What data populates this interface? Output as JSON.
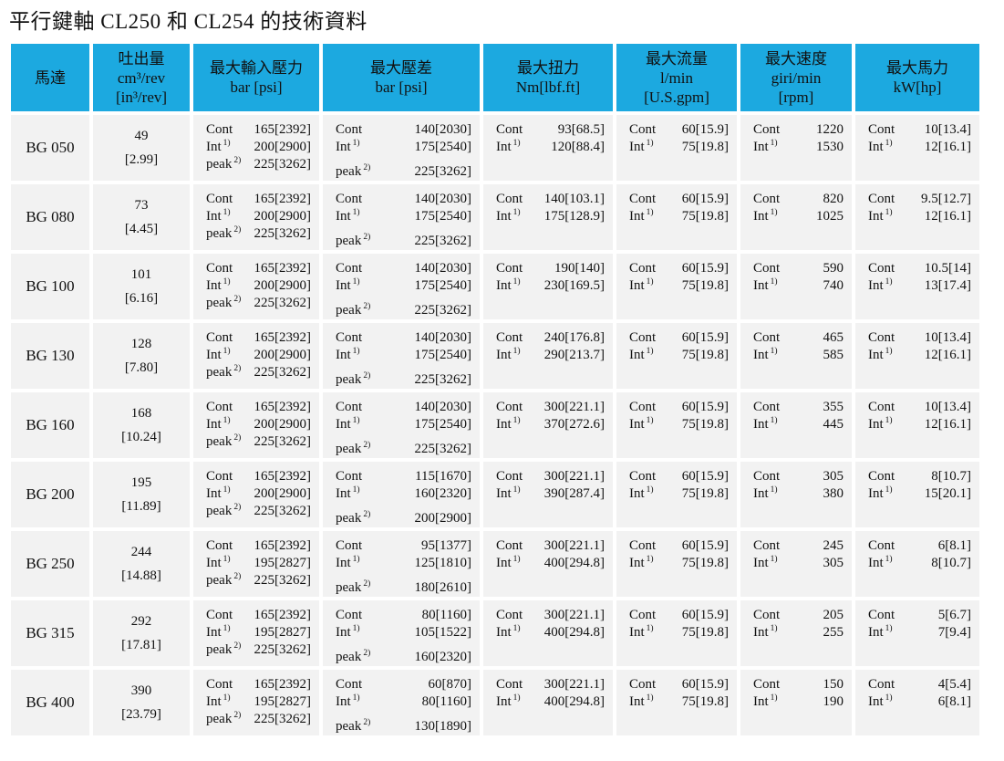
{
  "title": "平行鍵軸 CL250 和 CL254 的技術資料",
  "colors": {
    "header_bg": "#1CA9E0",
    "cell_bg": "#F2F2F2"
  },
  "table": {
    "columns": [
      {
        "key": "motor",
        "lines": [
          "馬達"
        ]
      },
      {
        "key": "displacement",
        "lines": [
          "吐出量",
          "cm³/rev",
          "[in³/rev]"
        ]
      },
      {
        "key": "input-pressure",
        "lines": [
          "最大輸入壓力",
          "bar [psi]"
        ]
      },
      {
        "key": "pressure-diff",
        "lines": [
          "最大壓差",
          "bar [psi]"
        ]
      },
      {
        "key": "torque",
        "lines": [
          "最大扭力",
          "Nm[lbf.ft]"
        ]
      },
      {
        "key": "flow",
        "lines": [
          "最大流量",
          "l/min",
          "[U.S.gpm]"
        ]
      },
      {
        "key": "speed",
        "lines": [
          "最大速度",
          "giri/min",
          "[rpm]"
        ]
      },
      {
        "key": "power",
        "lines": [
          "最大馬力",
          "kW[hp]"
        ]
      }
    ],
    "labels": {
      "cont": "Cont",
      "int": "Int",
      "int_sup": "1)",
      "peak": "peak",
      "peak_sup": "2)"
    },
    "rows": [
      {
        "motor": "BG 050",
        "displacement": [
          "49",
          "[2.99]"
        ],
        "input_pressure": {
          "cont": "165[2392]",
          "int": "200[2900]",
          "peak": "225[3262]"
        },
        "pressure_diff": {
          "cont": "140[2030]",
          "int": "175[2540]",
          "peak": "225[3262]"
        },
        "torque": {
          "cont": "93[68.5]",
          "int": "120[88.4]"
        },
        "flow": {
          "cont": "60[15.9]",
          "int": "75[19.8]"
        },
        "speed": {
          "cont": "1220",
          "int": "1530"
        },
        "power": {
          "cont": "10[13.4]",
          "int": "12[16.1]"
        }
      },
      {
        "motor": "BG 080",
        "displacement": [
          "73",
          "[4.45]"
        ],
        "input_pressure": {
          "cont": "165[2392]",
          "int": "200[2900]",
          "peak": "225[3262]"
        },
        "pressure_diff": {
          "cont": "140[2030]",
          "int": "175[2540]",
          "peak": "225[3262]"
        },
        "torque": {
          "cont": "140[103.1]",
          "int": "175[128.9]"
        },
        "flow": {
          "cont": "60[15.9]",
          "int": "75[19.8]"
        },
        "speed": {
          "cont": "820",
          "int": "1025"
        },
        "power": {
          "cont": "9.5[12.7]",
          "int": "12[16.1]"
        }
      },
      {
        "motor": "BG 100",
        "displacement": [
          "101",
          "[6.16]"
        ],
        "input_pressure": {
          "cont": "165[2392]",
          "int": "200[2900]",
          "peak": "225[3262]"
        },
        "pressure_diff": {
          "cont": "140[2030]",
          "int": "175[2540]",
          "peak": "225[3262]"
        },
        "torque": {
          "cont": "190[140]",
          "int": "230[169.5]"
        },
        "flow": {
          "cont": "60[15.9]",
          "int": "75[19.8]"
        },
        "speed": {
          "cont": "590",
          "int": "740"
        },
        "power": {
          "cont": "10.5[14]",
          "int": "13[17.4]"
        }
      },
      {
        "motor": "BG 130",
        "displacement": [
          "128",
          "[7.80]"
        ],
        "input_pressure": {
          "cont": "165[2392]",
          "int": "200[2900]",
          "peak": "225[3262]"
        },
        "pressure_diff": {
          "cont": "140[2030]",
          "int": "175[2540]",
          "peak": "225[3262]"
        },
        "torque": {
          "cont": "240[176.8]",
          "int": "290[213.7]"
        },
        "flow": {
          "cont": "60[15.9]",
          "int": "75[19.8]"
        },
        "speed": {
          "cont": "465",
          "int": "585"
        },
        "power": {
          "cont": "10[13.4]",
          "int": "12[16.1]"
        }
      },
      {
        "motor": "BG 160",
        "displacement": [
          "168",
          "[10.24]"
        ],
        "input_pressure": {
          "cont": "165[2392]",
          "int": "200[2900]",
          "peak": "225[3262]"
        },
        "pressure_diff": {
          "cont": "140[2030]",
          "int": "175[2540]",
          "peak": "225[3262]"
        },
        "torque": {
          "cont": "300[221.1]",
          "int": "370[272.6]"
        },
        "flow": {
          "cont": "60[15.9]",
          "int": "75[19.8]"
        },
        "speed": {
          "cont": "355",
          "int": "445"
        },
        "power": {
          "cont": "10[13.4]",
          "int": "12[16.1]"
        }
      },
      {
        "motor": "BG 200",
        "displacement": [
          "195",
          "[11.89]"
        ],
        "input_pressure": {
          "cont": "165[2392]",
          "int": "200[2900]",
          "peak": "225[3262]"
        },
        "pressure_diff": {
          "cont": "115[1670]",
          "int": "160[2320]",
          "peak": "200[2900]"
        },
        "torque": {
          "cont": "300[221.1]",
          "int": "390[287.4]"
        },
        "flow": {
          "cont": "60[15.9]",
          "int": "75[19.8]"
        },
        "speed": {
          "cont": "305",
          "int": "380"
        },
        "power": {
          "cont": "8[10.7]",
          "int": "15[20.1]"
        }
      },
      {
        "motor": "BG 250",
        "displacement": [
          "244",
          "[14.88]"
        ],
        "input_pressure": {
          "cont": "165[2392]",
          "int": "195[2827]",
          "peak": "225[3262]"
        },
        "pressure_diff": {
          "cont": "95[1377]",
          "int": "125[1810]",
          "peak": "180[2610]"
        },
        "torque": {
          "cont": "300[221.1]",
          "int": "400[294.8]"
        },
        "flow": {
          "cont": "60[15.9]",
          "int": "75[19.8]"
        },
        "speed": {
          "cont": "245",
          "int": "305"
        },
        "power": {
          "cont": "6[8.1]",
          "int": "8[10.7]"
        }
      },
      {
        "motor": "BG 315",
        "displacement": [
          "292",
          "[17.81]"
        ],
        "input_pressure": {
          "cont": "165[2392]",
          "int": "195[2827]",
          "peak": "225[3262]"
        },
        "pressure_diff": {
          "cont": "80[1160]",
          "int": "105[1522]",
          "peak": "160[2320]"
        },
        "torque": {
          "cont": "300[221.1]",
          "int": "400[294.8]"
        },
        "flow": {
          "cont": "60[15.9]",
          "int": "75[19.8]"
        },
        "speed": {
          "cont": "205",
          "int": "255"
        },
        "power": {
          "cont": "5[6.7]",
          "int": "7[9.4]"
        }
      },
      {
        "motor": "BG 400",
        "displacement": [
          "390",
          "[23.79]"
        ],
        "input_pressure": {
          "cont": "165[2392]",
          "int": "195[2827]",
          "peak": "225[3262]"
        },
        "pressure_diff": {
          "cont": "60[870]",
          "int": "80[1160]",
          "peak": "130[1890]"
        },
        "torque": {
          "cont": "300[221.1]",
          "int": "400[294.8]"
        },
        "flow": {
          "cont": "60[15.9]",
          "int": "75[19.8]"
        },
        "speed": {
          "cont": "150",
          "int": "190"
        },
        "power": {
          "cont": "4[5.4]",
          "int": "6[8.1]"
        }
      }
    ]
  }
}
